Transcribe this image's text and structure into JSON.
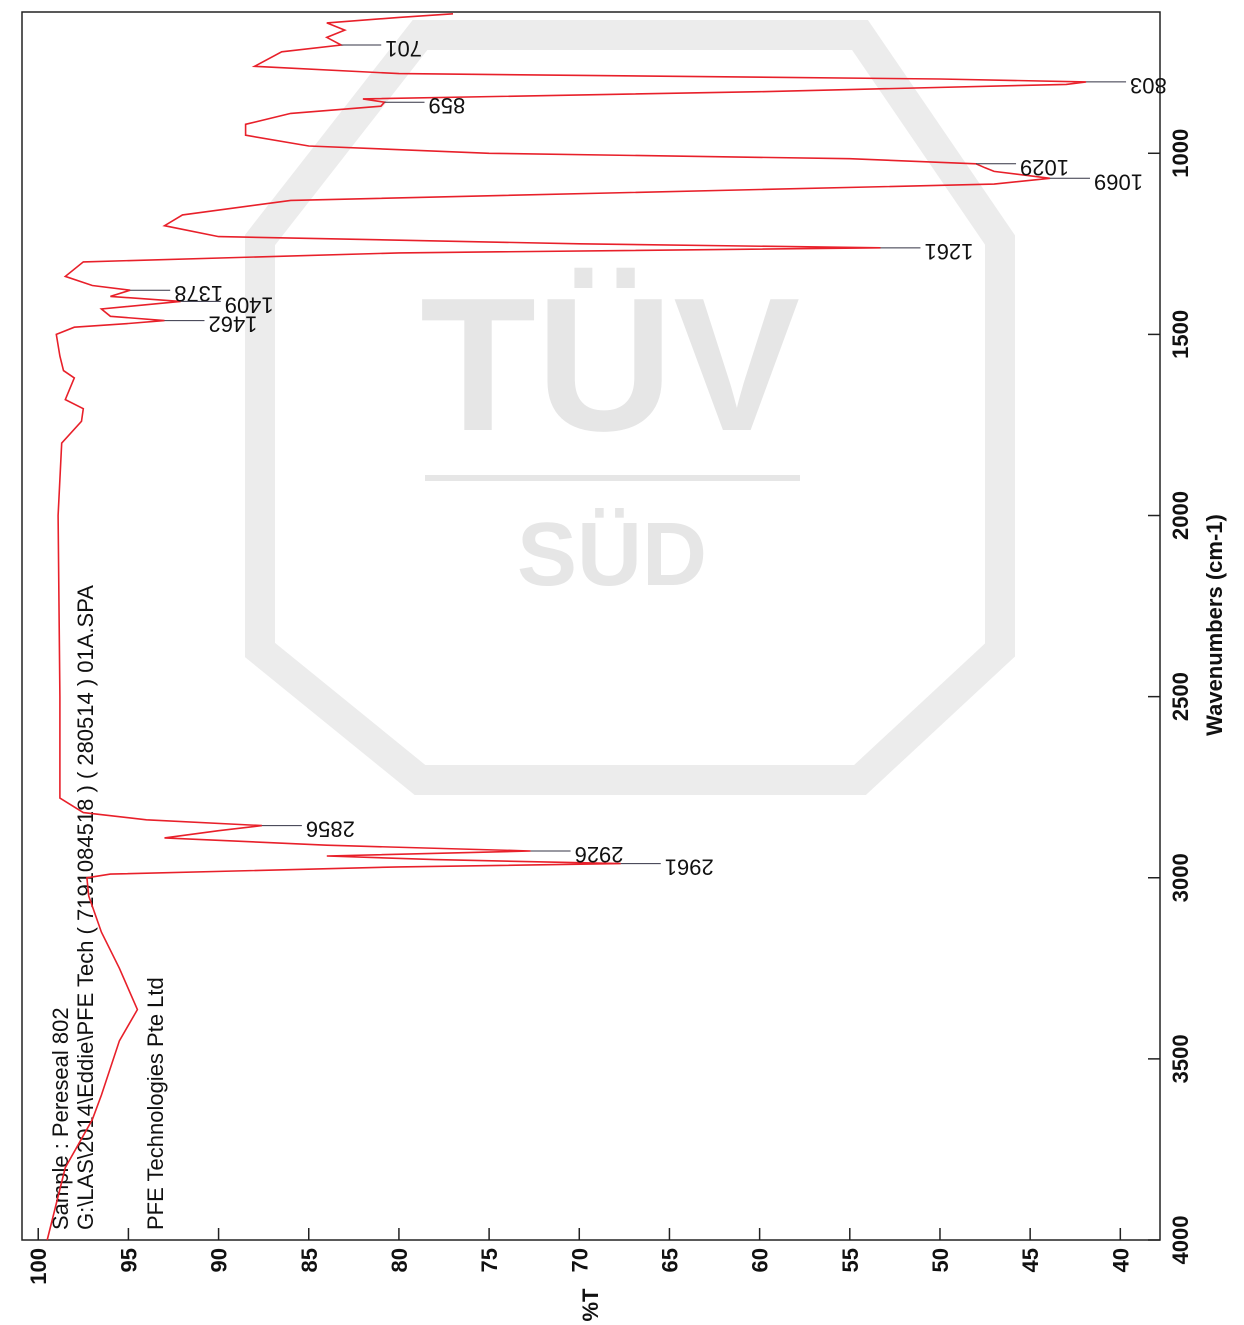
{
  "chart_data": {
    "type": "line",
    "sample_text": "Sample  :  Pereseal 802",
    "file_text": "G:\\LAS\\2014\\Eddie\\PFE Tech ( 7191084518 ) ( 280514 ) 01A.SPA",
    "company_text": "PFE Technologies Pte Ltd",
    "watermark": [
      "TÜV",
      "SÜD"
    ],
    "x_label": "Wavenumbers (cm-1)",
    "y_label": "%T",
    "xlim": [
      4000,
      610
    ],
    "xticks": [
      1000,
      1500,
      2000,
      2500,
      3000,
      3500,
      4000
    ],
    "ylim": [
      37.8,
      100.9
    ],
    "yticks": [
      40,
      45,
      50,
      55,
      60,
      65,
      70,
      75,
      80,
      85,
      90,
      95,
      100
    ],
    "color": "#e8202a",
    "x": [
      4000,
      3800,
      3668,
      3600,
      3450,
      3364,
      3250,
      3150,
      3050,
      3000,
      2990,
      2970,
      2961,
      2950,
      2940,
      2926,
      2910,
      2890,
      2870,
      2856,
      2840,
      2820,
      2780,
      2500,
      2000,
      1800,
      1740,
      1705,
      1680,
      1620,
      1600,
      1560,
      1500,
      1480,
      1470,
      1462,
      1450,
      1430,
      1409,
      1395,
      1378,
      1365,
      1340,
      1300,
      1275,
      1261,
      1250,
      1230,
      1200,
      1170,
      1130,
      1100,
      1085,
      1069,
      1050,
      1040,
      1029,
      1015,
      1000,
      980,
      950,
      920,
      890,
      870,
      859,
      850,
      830,
      810,
      803,
      795,
      780,
      760,
      720,
      701,
      680,
      660,
      640,
      625,
      615
    ],
    "values": [
      99.5,
      98.5,
      97,
      96.5,
      95.5,
      94.5,
      95.5,
      96.5,
      97.2,
      97.3,
      96,
      80,
      67.7,
      78,
      84,
      72.7,
      84,
      93,
      90,
      87.6,
      94,
      97.5,
      98.8,
      98.8,
      98.9,
      98.7,
      97.6,
      97.5,
      98.5,
      98,
      98.6,
      98.8,
      99,
      98,
      95,
      93.0,
      96,
      96.5,
      92.1,
      96,
      94.9,
      97,
      98.5,
      97.5,
      80,
      53.3,
      70,
      90,
      93,
      92,
      86,
      60,
      47,
      43.9,
      47,
      47.5,
      48.0,
      55,
      75,
      85,
      88.5,
      88.5,
      86,
      81,
      80.8,
      82,
      60,
      43,
      41.9,
      50,
      80,
      88,
      86.5,
      83.2,
      84,
      83,
      84,
      80,
      77
    ],
    "peaks": [
      {
        "wavenumber": 701,
        "t": 83.2
      },
      {
        "wavenumber": 803,
        "t": 41.9
      },
      {
        "wavenumber": 859,
        "t": 80.8
      },
      {
        "wavenumber": 1029,
        "t": 48.0
      },
      {
        "wavenumber": 1069,
        "t": 43.9
      },
      {
        "wavenumber": 1261,
        "t": 53.3
      },
      {
        "wavenumber": 1378,
        "t": 94.9
      },
      {
        "wavenumber": 1409,
        "t": 92.1
      },
      {
        "wavenumber": 1462,
        "t": 93.0
      },
      {
        "wavenumber": 2856,
        "t": 87.6
      },
      {
        "wavenumber": 2926,
        "t": 72.7
      },
      {
        "wavenumber": 2961,
        "t": 67.7
      }
    ]
  }
}
